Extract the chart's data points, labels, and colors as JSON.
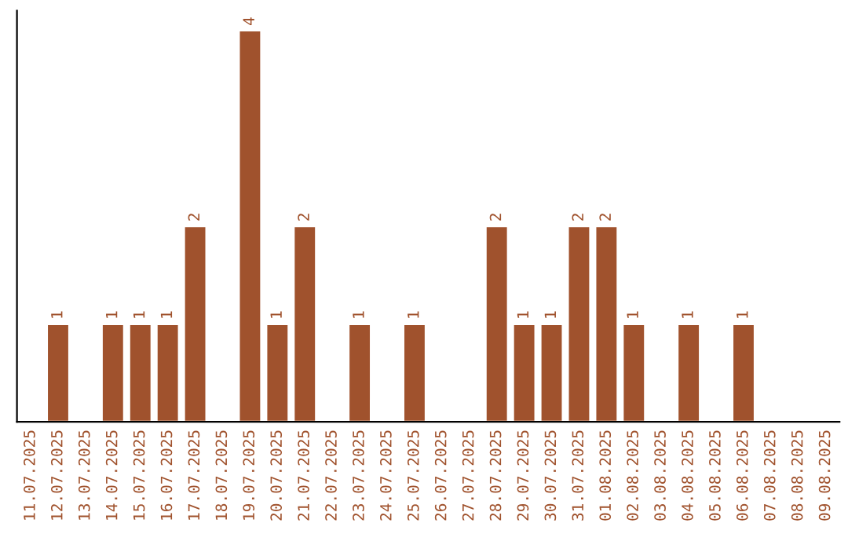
{
  "chart_data": {
    "type": "bar",
    "categories": [
      "11.07.2025",
      "12.07.2025",
      "13.07.2025",
      "14.07.2025",
      "15.07.2025",
      "16.07.2025",
      "17.07.2025",
      "18.07.2025",
      "19.07.2025",
      "20.07.2025",
      "21.07.2025",
      "22.07.2025",
      "23.07.2025",
      "24.07.2025",
      "25.07.2025",
      "26.07.2025",
      "27.07.2025",
      "28.07.2025",
      "29.07.2025",
      "30.07.2025",
      "31.07.2025",
      "01.08.2025",
      "02.08.2025",
      "03.08.2025",
      "04.08.2025",
      "05.08.2025",
      "06.08.2025",
      "07.08.2025",
      "08.08.2025",
      "09.08.2025"
    ],
    "values": [
      null,
      1,
      null,
      1,
      1,
      1,
      2,
      null,
      4,
      1,
      2,
      null,
      1,
      null,
      1,
      null,
      null,
      2,
      1,
      1,
      2,
      2,
      1,
      null,
      1,
      null,
      1,
      null,
      null,
      null
    ],
    "value_labels": [
      null,
      "1",
      null,
      "1",
      "1",
      "1",
      "2",
      null,
      "4",
      "1",
      "2",
      null,
      "1",
      null,
      "1",
      null,
      null,
      "2",
      "1",
      "1",
      "2",
      "2",
      "1",
      null,
      "1",
      null,
      "1",
      null,
      null,
      null
    ],
    "color": "#a0522d",
    "ylim": [
      0,
      4.2
    ],
    "grid": false,
    "legend": false
  }
}
